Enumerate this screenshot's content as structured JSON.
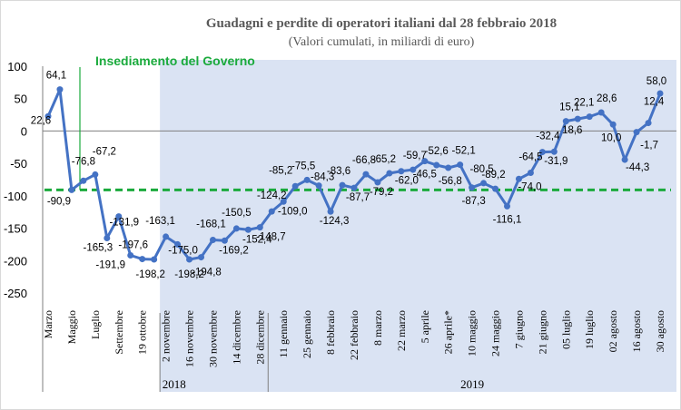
{
  "chart_data": {
    "type": "line",
    "title": "Guadagni e perdite di operatori italiani dal 28 febbraio 2018",
    "subtitle": "(Valori cumulati, in miliardi di euro)",
    "ylim": [
      -250,
      100
    ],
    "yticks": [
      -250,
      -200,
      -150,
      -100,
      -50,
      0,
      50,
      100
    ],
    "reference_line": -90.9,
    "annotation": "Insediamento del Governo",
    "shaded_from_index": 12,
    "series": [
      {
        "values": [
          22.6,
          64.1,
          -90.9,
          -76.8,
          -67.2,
          -165.3,
          -131.9,
          -191.9,
          -197.6,
          -198.2,
          -163.1,
          -175.0,
          -198.2,
          -194.8,
          -168.1,
          -169.2,
          -150.5,
          -152.4,
          -148.7,
          -124.2,
          -109.0,
          -85.2,
          -75.5,
          -84.3,
          -124.3,
          -83.6,
          -87.7,
          -66.8,
          -79.2,
          -65.2,
          -62.0,
          -59.7,
          -46.5,
          -52.6,
          -56.8,
          -52.1,
          -87.3,
          -80.5,
          -89.2,
          -116.1,
          -74.0,
          -64.5,
          -32.4,
          -31.9,
          15.1,
          18.6,
          22.1,
          28.6,
          10.0,
          -44.3,
          -1.7,
          12.4,
          58.0
        ]
      }
    ],
    "data_labels": [
      "22,6",
      "64,1",
      "-90,9",
      "-76,8",
      "-67,2",
      "-165,3",
      "-131,9",
      "-191,9",
      "-197,6",
      "-198,2",
      "-163,1",
      "-175,0",
      "-198,2",
      "-194,8",
      "-168,1",
      "-169,2",
      "-150,5",
      "-152,4",
      "-148,7",
      "-124,2",
      "-109,0",
      "-85,2",
      "-75,5",
      "-84,3",
      "-124,3",
      "-83,6",
      "-87,7",
      "-66,8",
      "-79,2",
      "-65,2",
      "-62,0",
      "-59,7",
      "-46,5",
      "-52,6",
      "-56,8",
      "-52,1",
      "-87,3",
      "-80,5",
      "-89,2",
      "-116,1",
      "-74,0",
      "-64,5",
      "-32,4",
      "-31,9",
      "15,1",
      "18,6",
      "22,1",
      "28,6",
      "10,0",
      "-44,3",
      "-1,7",
      "12,4",
      "58,0"
    ],
    "x_tick_labels": [
      {
        "index": 0,
        "label": "Marzo"
      },
      {
        "index": 2,
        "label": "Maggio"
      },
      {
        "index": 4,
        "label": "Luglio"
      },
      {
        "index": 6,
        "label": "Settembre"
      },
      {
        "index": 8,
        "label": "19 ottobre"
      },
      {
        "index": 10,
        "label": "2 novembre"
      },
      {
        "index": 12,
        "label": "16 novembre"
      },
      {
        "index": 14,
        "label": "30 novembre"
      },
      {
        "index": 16,
        "label": "14 dicembre"
      },
      {
        "index": 18,
        "label": "28 dicembre"
      },
      {
        "index": 20,
        "label": "11 gennaio"
      },
      {
        "index": 22,
        "label": "25 gennaio"
      },
      {
        "index": 24,
        "label": "8 febbraio"
      },
      {
        "index": 26,
        "label": "22 febbraio"
      },
      {
        "index": 28,
        "label": "8 marzo"
      },
      {
        "index": 30,
        "label": "22 marzo"
      },
      {
        "index": 32,
        "label": "5 aprile"
      },
      {
        "index": 34,
        "label": "26 aprile*"
      },
      {
        "index": 36,
        "label": "10 maggio"
      },
      {
        "index": 38,
        "label": "24 maggio"
      },
      {
        "index": 40,
        "label": "7 giugno"
      },
      {
        "index": 42,
        "label": "21 giugno"
      },
      {
        "index": 44,
        "label": "05 luglio"
      },
      {
        "index": 46,
        "label": "19 luglio"
      },
      {
        "index": 48,
        "label": "02 agosto"
      },
      {
        "index": 50,
        "label": "16 agosto"
      },
      {
        "index": 52,
        "label": "30 agosto"
      }
    ],
    "year_labels": [
      "2018",
      "2019"
    ],
    "line_color": "#4472c4",
    "reference_color": "#1aaa3c",
    "shade_color": "#dae3f3",
    "grid": false
  }
}
